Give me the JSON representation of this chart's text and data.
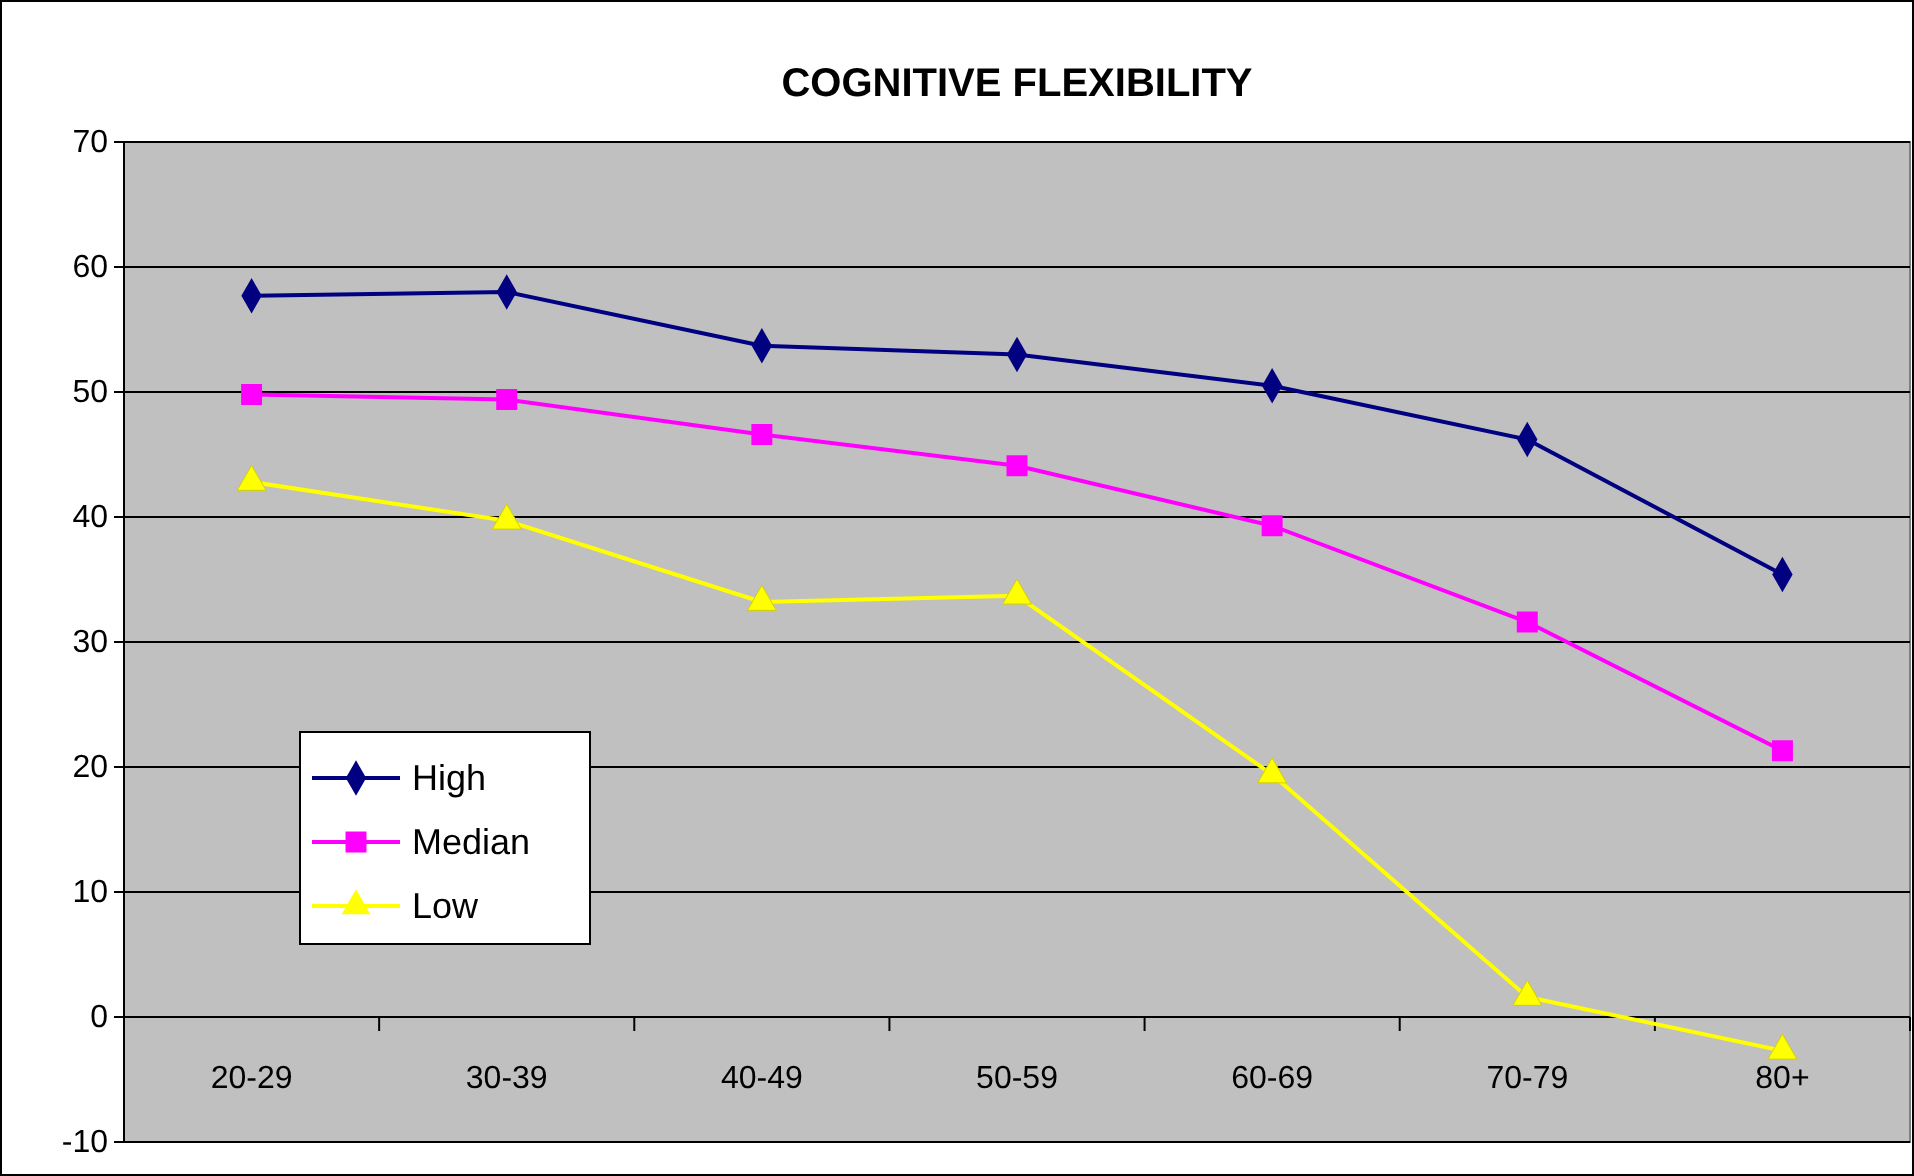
{
  "chart_data": {
    "type": "line",
    "title": "COGNITIVE FLEXIBILITY",
    "categories": [
      "20-29",
      "30-39",
      "40-49",
      "50-59",
      "60-69",
      "70-79",
      "80+"
    ],
    "series": [
      {
        "name": "High",
        "color": "#000080",
        "marker": "diamond",
        "values": [
          57.7,
          58.0,
          53.7,
          53.0,
          50.5,
          46.2,
          35.4
        ]
      },
      {
        "name": "Median",
        "color": "#ff00ff",
        "marker": "square",
        "values": [
          49.8,
          49.4,
          46.6,
          44.1,
          39.3,
          31.6,
          21.3
        ]
      },
      {
        "name": "Low",
        "color": "#ffff00",
        "marker": "triangle",
        "values": [
          42.8,
          39.7,
          33.2,
          33.7,
          19.4,
          1.6,
          -2.7
        ]
      }
    ],
    "ylim": [
      -10,
      70
    ],
    "yticks": [
      -10,
      0,
      10,
      20,
      30,
      40,
      50,
      60,
      70
    ],
    "grid": "y",
    "legend": "bottom left"
  }
}
